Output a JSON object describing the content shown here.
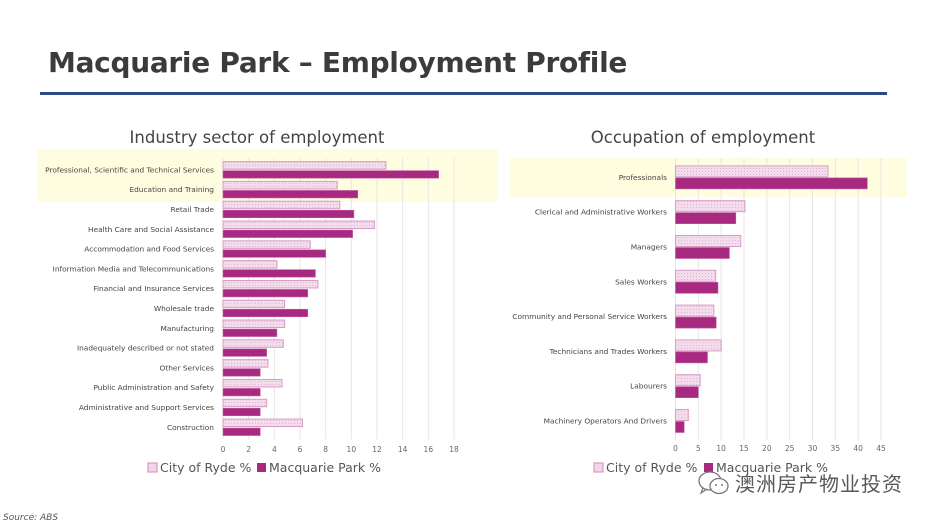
{
  "page": {
    "title": "Macquarie Park – Employment Profile",
    "source": "Source: ABS",
    "watermark": "澳洲房产物业投资",
    "watermark_icon": "wechat-icon",
    "colors": {
      "title_rule": "#2c4a86",
      "highlight": "#fffde0",
      "ryde_fill": "#f1d6ea",
      "ryde_stroke": "#d79bc6",
      "mp_fill": "#a72a80",
      "grid": "#e6e6e6"
    }
  },
  "chart_data": [
    {
      "type": "bar",
      "orientation": "horizontal",
      "title": "Industry sector of employment",
      "categories": [
        "Professional, Scientific and Technical Services",
        "Education and Training",
        "Retail Trade",
        "Health Care and Social Assistance",
        "Accommodation and Food Services",
        "Information Media and Telecommunications",
        "Financial and Insurance Services",
        "Wholesale trade",
        "Manufacturing",
        "Inadequately described or not stated",
        "Other Services",
        "Public Administration and Safety",
        "Administrative and Support Services",
        "Construction"
      ],
      "series": [
        {
          "name": "City of Ryde %",
          "values": [
            12.7,
            8.9,
            9.1,
            11.8,
            6.8,
            4.2,
            7.4,
            4.8,
            4.8,
            4.7,
            3.5,
            4.6,
            3.4,
            6.2
          ]
        },
        {
          "name": "Macquarie Park %",
          "values": [
            16.8,
            10.5,
            10.2,
            10.1,
            8.0,
            7.2,
            6.6,
            6.6,
            4.2,
            3.4,
            2.9,
            2.9,
            2.9,
            2.9
          ]
        }
      ],
      "xlim": [
        0,
        18
      ],
      "xticks": [
        "0",
        "2",
        "4",
        "6",
        "8",
        "10",
        "12",
        "14",
        "16",
        "18"
      ],
      "highlighted_categories": 2,
      "grid": true,
      "legend": "bottom"
    },
    {
      "type": "bar",
      "orientation": "horizontal",
      "title": "Occupation of employment",
      "categories": [
        "Professionals",
        "Clerical and Administrative Workers",
        "Managers",
        "Sales Workers",
        "Community and Personal Service Workers",
        "Technicians and Trades Workers",
        "Labourers",
        "Machinery Operators And Drivers"
      ],
      "series": [
        {
          "name": "City of Ryde %",
          "values": [
            33.4,
            15.2,
            14.3,
            8.8,
            8.4,
            10.0,
            5.4,
            2.8
          ]
        },
        {
          "name": "Macquarie Park %",
          "values": [
            42.0,
            13.2,
            11.8,
            9.3,
            8.9,
            7.0,
            5.0,
            1.9
          ]
        }
      ],
      "xlim": [
        0,
        45
      ],
      "xticks": [
        "0",
        "5",
        "10",
        "15",
        "20",
        "25",
        "30",
        "35",
        "40",
        "45"
      ],
      "highlighted_categories": 1,
      "grid": true,
      "legend": "bottom"
    }
  ]
}
